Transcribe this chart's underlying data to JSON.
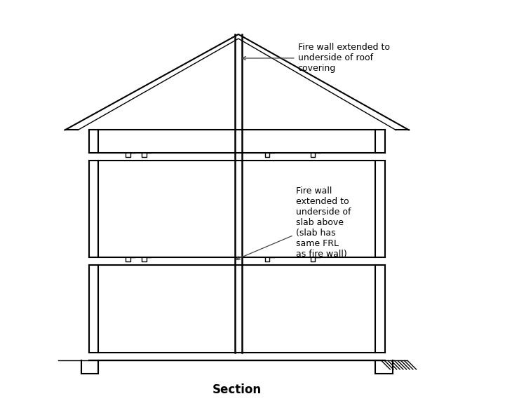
{
  "bg_color": "#ffffff",
  "line_color": "#000000",
  "title": "Section",
  "title_fontsize": 12,
  "annotation_fontsize": 9,
  "figsize": [
    7.5,
    5.82
  ],
  "dpi": 100,
  "xlim": [
    0,
    10
  ],
  "ylim": [
    0,
    9
  ],
  "annotation1_text": "Fire wall extended to\nunderside of roof\ncovering",
  "annotation2_text": "Fire wall\nextended to\nunderside of\nslab above\n(slab has\nsame FRL\nas fire wall)"
}
